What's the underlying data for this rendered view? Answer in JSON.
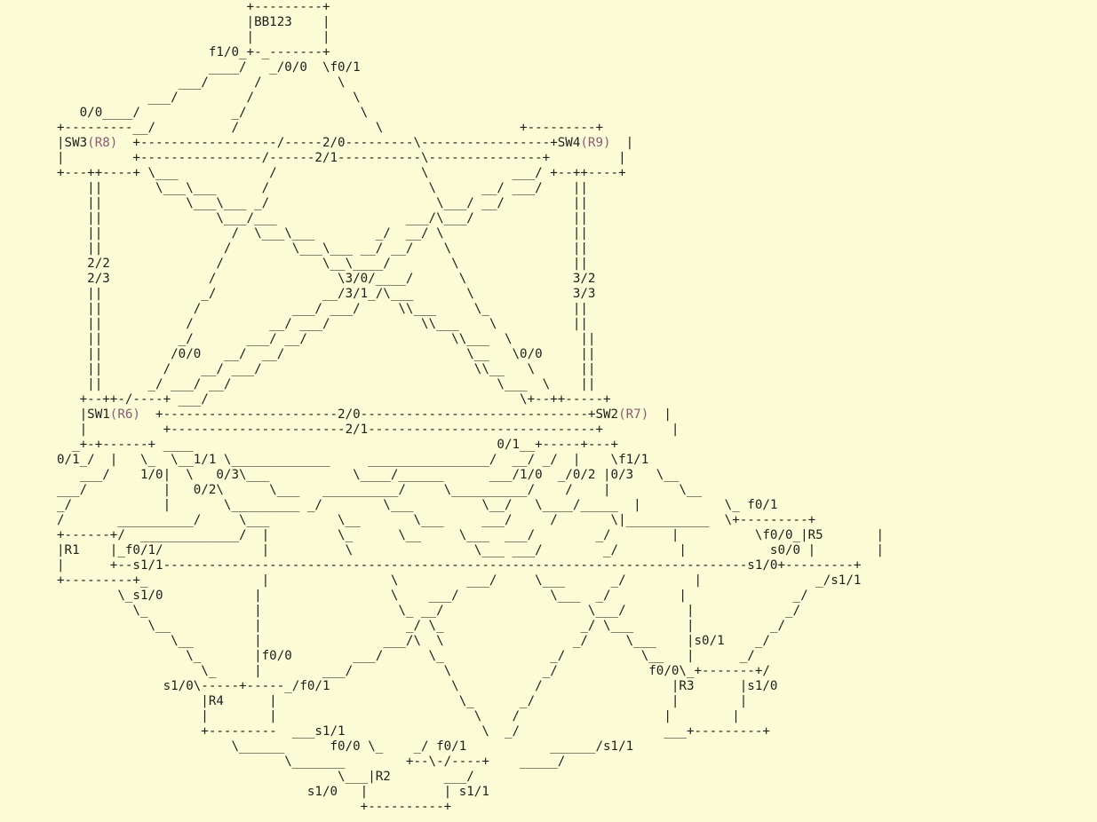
{
  "diagram": {
    "title": "BB123",
    "colors": {
      "background": "#fbfbd6",
      "text": "#1e1e1e",
      "annotation": "#8c5a78"
    },
    "lines": [
      [
        {
          "t": "                         +---------+"
        }
      ],
      [
        {
          "t": "                         |BB123    |"
        }
      ],
      [
        {
          "t": "                         |         |"
        }
      ],
      [
        {
          "t": "                    f1/0_+-_-------+"
        }
      ],
      [
        {
          "t": "                    ____/   _/0/0  \\f0/1"
        }
      ],
      [
        {
          "t": "                ___/      /          \\"
        }
      ],
      [
        {
          "t": "            ___/         /             \\"
        }
      ],
      [
        {
          "t": "   0/0____/            _/               \\"
        }
      ],
      [
        {
          "t": "+---------__/          /                  \\                  +---------+"
        }
      ],
      [
        {
          "t": "|SW3"
        },
        {
          "t": "(R8)",
          "k": "note"
        },
        {
          "t": "  +------------------/-----2/0---------\\-----------------+SW4"
        },
        {
          "t": "(R9)",
          "k": "note"
        },
        {
          "t": "  |"
        }
      ],
      [
        {
          "t": "|         +----------------/------2/1-----------\\---------------+         |"
        }
      ],
      [
        {
          "t": "+---++----+ \\___            /                   \\           ___/ +--++----+"
        }
      ],
      [
        {
          "t": "    ||       \\___\\___      /                     \\      __/ ___/    ||"
        }
      ],
      [
        {
          "t": "    ||           \\___\\___ _/                      \\___/ __/         ||"
        }
      ],
      [
        {
          "t": "    ||               \\___/___                 ___/\\___/             ||"
        }
      ],
      [
        {
          "t": "    ||                 /  \\___\\___        _/  __/ \\                 ||"
        }
      ],
      [
        {
          "t": "    ||                /        \\___\\___ __/ __/    \\                ||"
        }
      ],
      [
        {
          "t": "    2/2              /             \\__\\____/        \\               ||"
        }
      ],
      [
        {
          "t": "    2/3             /                \\3/0/____/      \\              3/2"
        }
      ],
      [
        {
          "t": "    ||             _/              __/3/1_/\\___       \\             3/3"
        }
      ],
      [
        {
          "t": "    ||            /            ___/ ___/     \\\\___     \\_           ||"
        }
      ],
      [
        {
          "t": "    ||           /          __/ ___/            \\\\___    \\          ||"
        }
      ],
      [
        {
          "t": "    ||          _/       ___/ __/                   \\\\___  \\         ||"
        }
      ],
      [
        {
          "t": "    ||         /0/0   __/  __/                        \\__   \\0/0     ||"
        }
      ],
      [
        {
          "t": "    ||        /    __/ ___/                            \\\\__   \\      ||"
        }
      ],
      [
        {
          "t": "    ||      _/ ___/ __/                                   \\___  \\    ||"
        }
      ],
      [
        {
          "t": "   +--++-/----+ ___/                                         \\+--++-----+"
        }
      ],
      [
        {
          "t": "   |SW1"
        },
        {
          "t": "(R6)",
          "k": "note"
        },
        {
          "t": "  +-----------------------2/0------------------------------+SW2"
        },
        {
          "t": "(R7)",
          "k": "note"
        },
        {
          "t": "  |"
        }
      ],
      [
        {
          "t": "   |          +-----------------------2/1------------------------------+         |"
        }
      ],
      [
        {
          "t": "  _+-+------+ ____                                        0/1__+-----+---+"
        }
      ],
      [
        {
          "t": "0/1_/  |   \\_  \\__1/1 \\_____________     ________________/  __/ _/  |    \\f1/1"
        }
      ],
      [
        {
          "t": "   ___/    1/0|  \\   0/3\\___           \\____/______      ___/1/0  _/0/2 |0/3   \\__"
        }
      ],
      [
        {
          "t": "___/          |   0/2\\      \\___   __________/     \\__________/    /    |         \\__"
        }
      ],
      [
        {
          "t": "_/            |       \\_________ _/        \\___         \\__/   \\____/_____  |           \\_ f0/1"
        }
      ],
      [
        {
          "t": "/       __________/     \\___         \\__       \\___     ___/     /       \\|___________  \\+---------+"
        }
      ],
      [
        {
          "t": "+------+/  _____________/  |         \\_      \\__     \\___  ___/        _/        |          \\f0/0_|R5       |"
        }
      ],
      [
        {
          "t": "|R1    |_f0/1/             |          \\                \\___ ___/        _/        |           s0/0 |        |"
        }
      ],
      [
        {
          "t": "|      +--s1/1-----------------------------------------------------------------------------s1/0+---------+"
        }
      ],
      [
        {
          "t": "+---------+_               |                \\         ___/     \\___      _/         |               _/s1/1"
        }
      ],
      [
        {
          "t": "        \\_s1/0            |                 \\    ___/            \\___  _/         |              _/"
        }
      ],
      [
        {
          "t": "          \\_              |                  \\_ __/                   \\___/        |            _/"
        }
      ],
      [
        {
          "t": "            \\__           |                   _/ \\_                  _/ \\___       |          _/"
        }
      ],
      [
        {
          "t": "               \\__        |                ___/\\  \\                 _/     \\___    |s0/1    _/"
        }
      ],
      [
        {
          "t": "                 \\_       |f0/0        ___/      \\_              _/          \\__   |      _/"
        }
      ],
      [
        {
          "t": "                   \\_     |        ___/            \\            _/            f0/0\\_+-------+/"
        }
      ],
      [
        {
          "t": "              s1/0\\-----+-----_/f0/1                \\          /                 |R3      |s1/0"
        }
      ],
      [
        {
          "t": "                   |R4      |                        \\_      _/                  |        |"
        }
      ],
      [
        {
          "t": "                   |        |                          \\    /                   |        |"
        }
      ],
      [
        {
          "t": "                   +---------  ___s1/1                  \\  _/                   ___+---------+"
        }
      ],
      [
        {
          "t": "                       \\______      f0/0 \\_    _/ f0/1           ______/s1/1"
        }
      ],
      [
        {
          "t": "                              \\_______        +--\\-/----+    _____/"
        }
      ],
      [
        {
          "t": "                                     \\___|R2       ___/"
        }
      ],
      [
        {
          "t": "                                 s1/0   |          | s1/1"
        }
      ],
      [
        {
          "t": "                                        +----------+"
        }
      ]
    ]
  }
}
